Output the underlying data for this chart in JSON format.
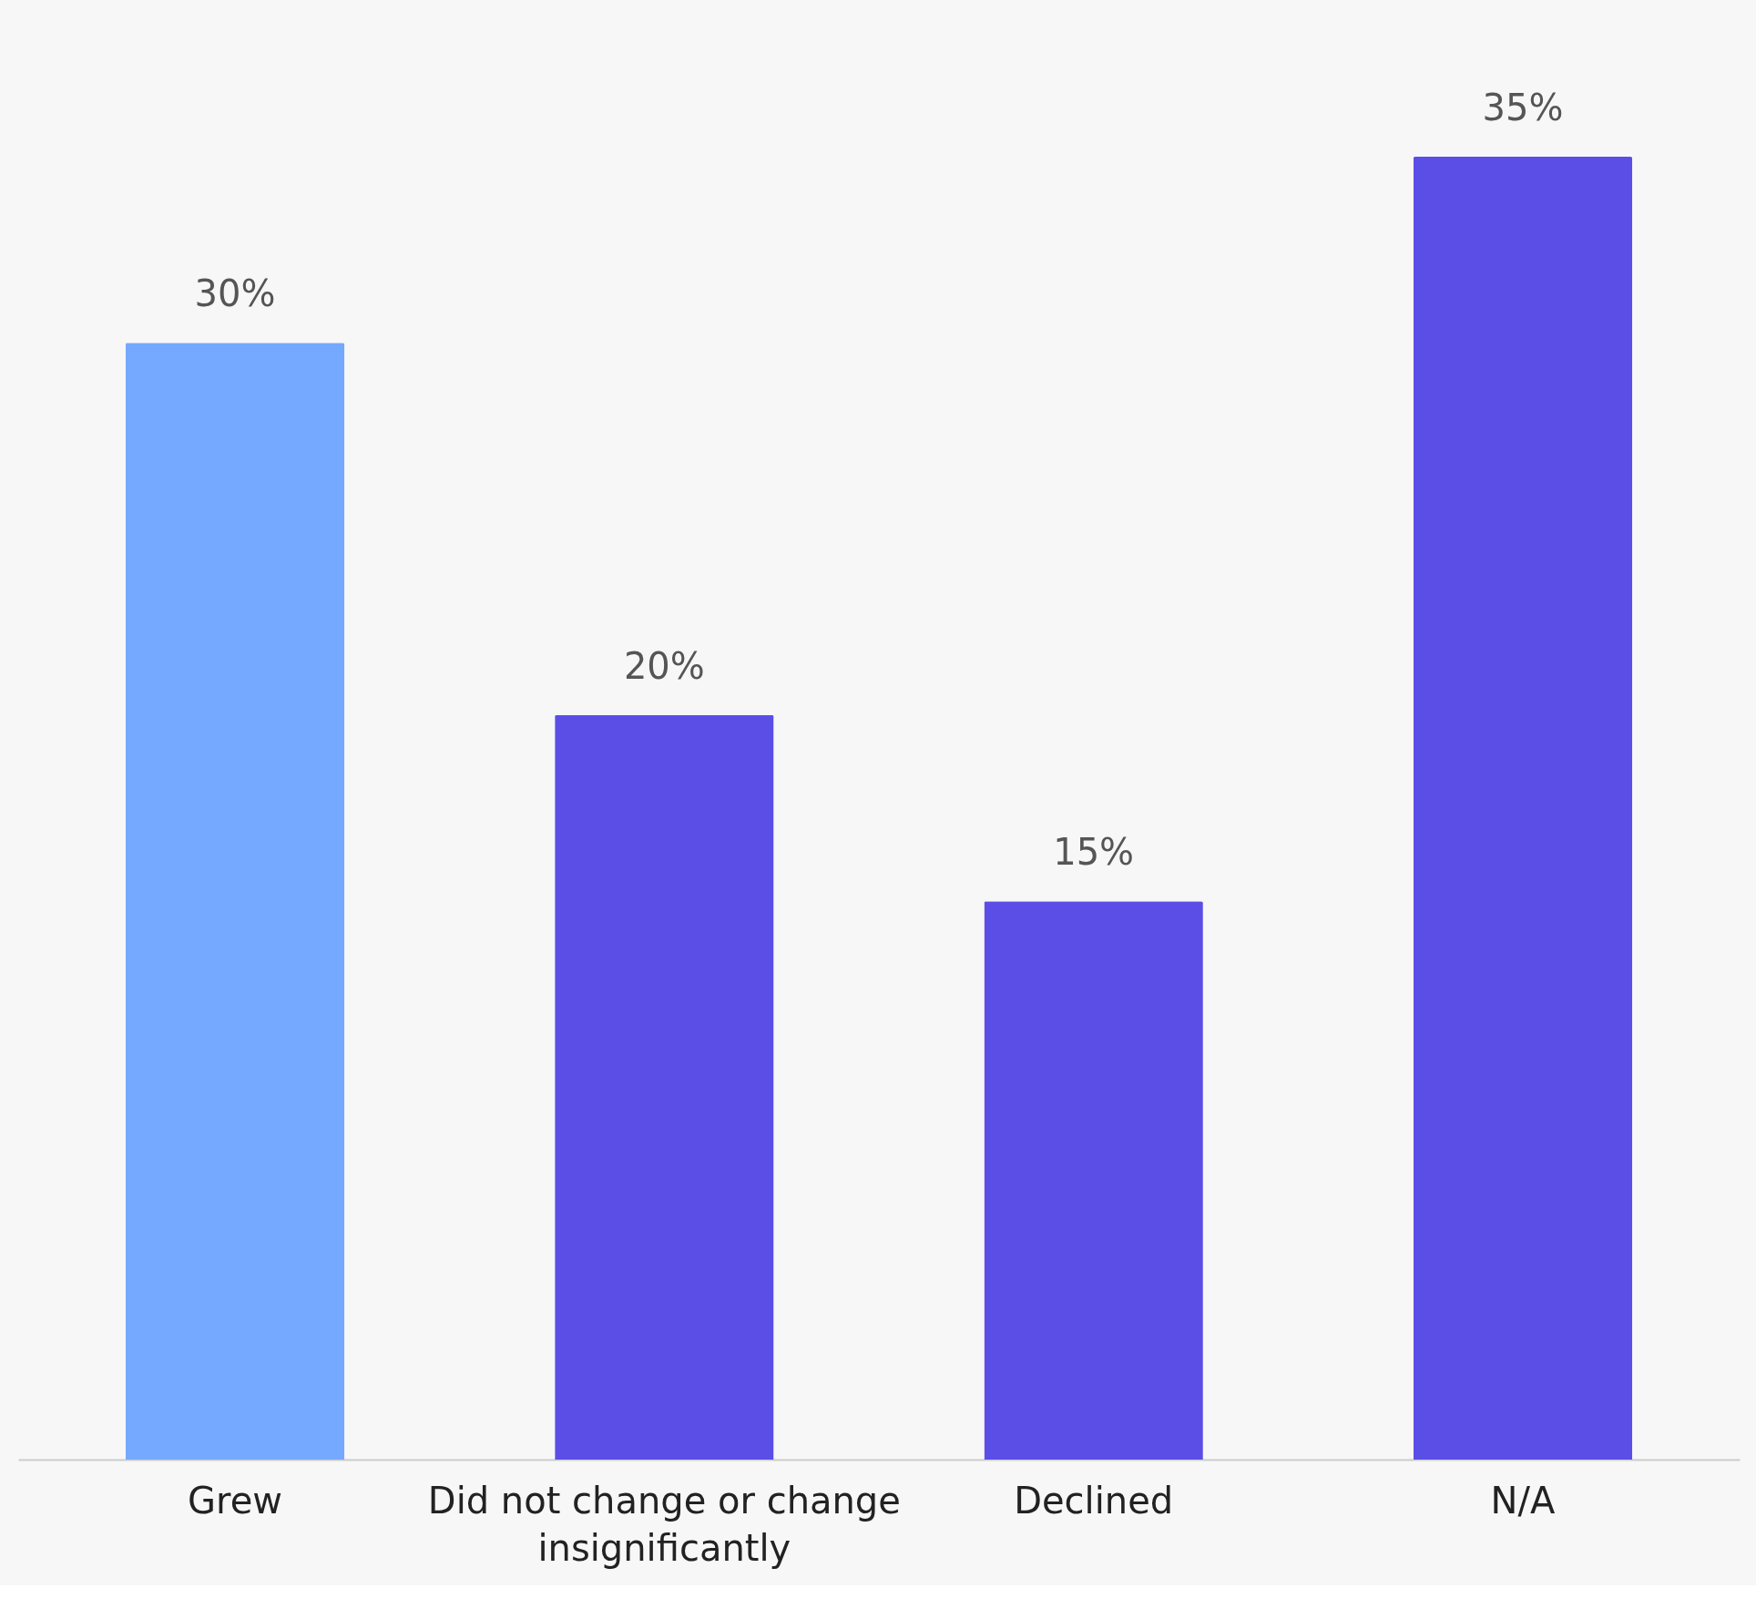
{
  "chart_data": {
    "type": "bar",
    "categories": [
      "Grew",
      "Did not change or change insignificantly",
      "Declined",
      "N/A"
    ],
    "values": [
      30,
      20,
      15,
      35
    ],
    "colors": [
      "#75a8ff",
      "#5b4ee6",
      "#5b4ee6",
      "#5b4ee6"
    ],
    "value_labels": [
      "30%",
      "20%",
      "15%",
      "35%"
    ]
  }
}
